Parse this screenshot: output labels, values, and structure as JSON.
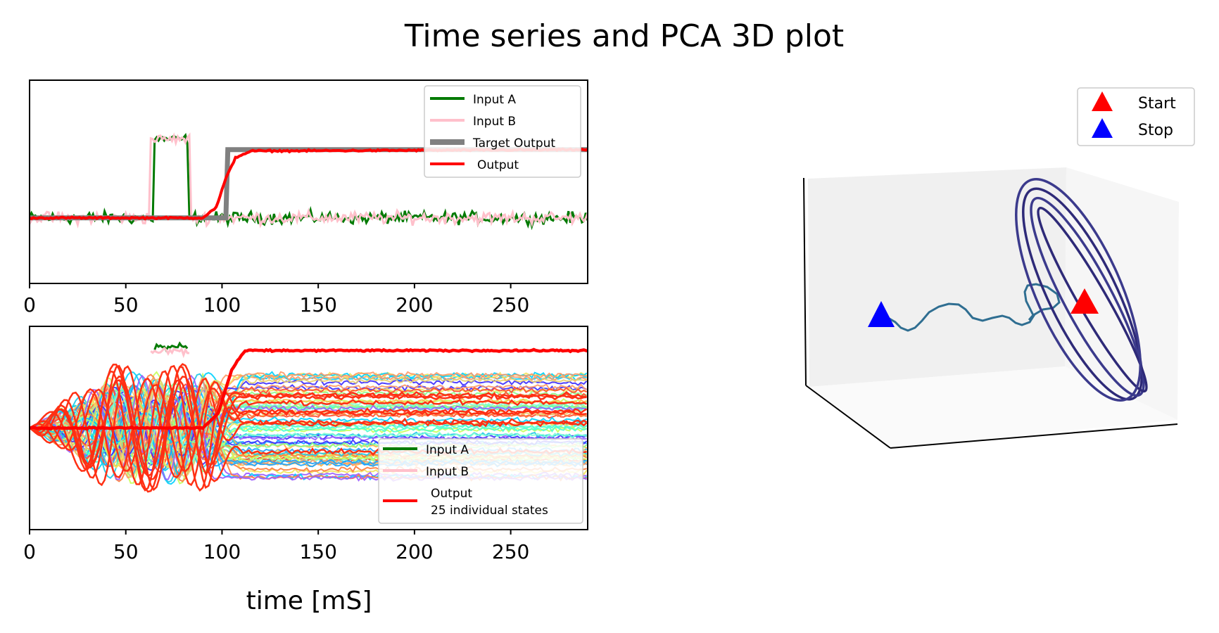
{
  "title": "Time series and PCA 3D plot",
  "colors": {
    "input_a": "#007a00",
    "input_b": "#ffc0cb",
    "target": "#808080",
    "output": "#ff0000",
    "start": "#ff0000",
    "stop": "#0000ff"
  },
  "chart_data": [
    {
      "type": "line",
      "panel": "top-left",
      "xlim": [
        0,
        290
      ],
      "ylim": [
        -0.5,
        1.05
      ],
      "x_ticks": [
        "0",
        "50",
        "100",
        "150",
        "200",
        "250"
      ],
      "legend": [
        "Input A",
        "Input B",
        "Target Output",
        "Output"
      ],
      "legend_position": "top-right",
      "series": [
        {
          "name": "Input A",
          "description_points": [
            [
              0,
              0
            ],
            [
              65,
              0
            ],
            [
              66,
              0.6
            ],
            [
              82,
              0.6
            ],
            [
              83,
              0
            ],
            [
              290,
              0
            ]
          ],
          "noise": 0.05
        },
        {
          "name": "Input B",
          "description_points": [
            [
              0,
              0
            ],
            [
              62,
              0
            ],
            [
              63,
              0.6
            ],
            [
              83,
              0.6
            ],
            [
              84,
              0
            ],
            [
              290,
              0
            ]
          ],
          "noise": 0.05
        },
        {
          "name": "Target Output",
          "points": [
            [
              0,
              0
            ],
            [
              102,
              0
            ],
            [
              103,
              0.52
            ],
            [
              290,
              0.52
            ]
          ]
        },
        {
          "name": "Output",
          "points": [
            [
              0,
              0
            ],
            [
              90,
              0
            ],
            [
              97,
              0.08
            ],
            [
              102,
              0.3
            ],
            [
              107,
              0.46
            ],
            [
              115,
              0.51
            ],
            [
              290,
              0.52
            ]
          ]
        }
      ]
    },
    {
      "type": "line",
      "panel": "bottom-left",
      "xlim": [
        0,
        290
      ],
      "x_ticks": [
        "0",
        "50",
        "100",
        "150",
        "200",
        "250"
      ],
      "xlabel": "time [mS]",
      "legend": [
        "Input A",
        "Input B",
        "Output",
        "25 individual states"
      ],
      "legend_position": "bottom-right",
      "individual_state_count": 25,
      "series": [
        {
          "name": "Output",
          "points": [
            [
              0,
              0
            ],
            [
              90,
              0
            ],
            [
              98,
              0.15
            ],
            [
              105,
              0.6
            ],
            [
              112,
              0.8
            ],
            [
              290,
              0.8
            ]
          ]
        }
      ]
    },
    {
      "type": "line3d",
      "panel": "right",
      "legend": [
        "Start",
        "Stop"
      ],
      "legend_position": "top-right",
      "markers": {
        "start": "Start",
        "stop": "Stop"
      }
    }
  ]
}
